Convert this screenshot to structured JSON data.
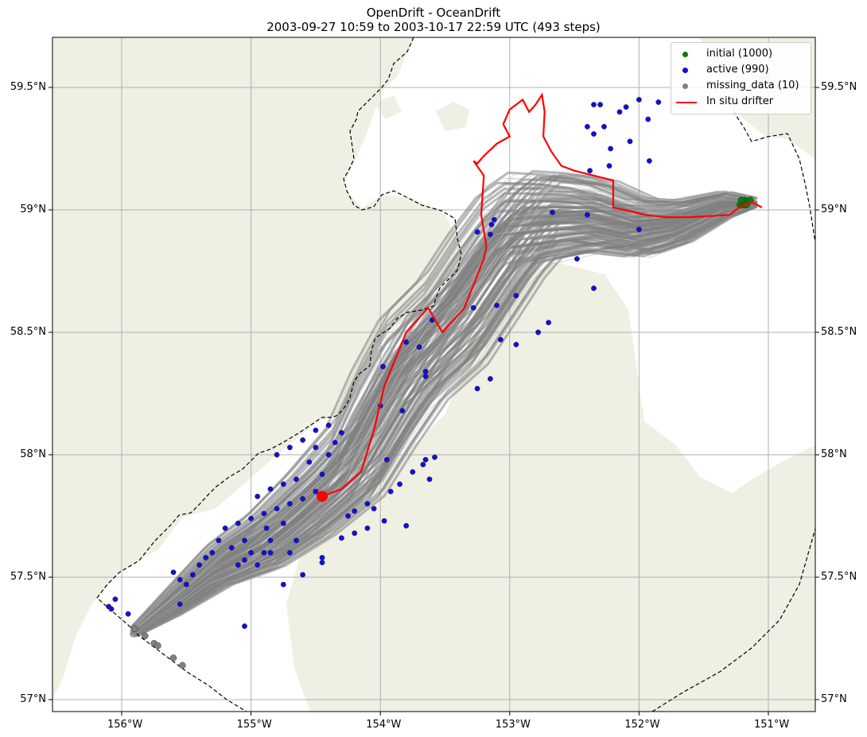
{
  "figure": {
    "title_line1": "OpenDrift - OceanDrift",
    "title_line2": "2003-09-27 10:59 to 2003-10-17 22:59 UTC (493 steps)"
  },
  "legend": {
    "items": [
      {
        "label": "initial (1000)",
        "color": "#0a7a0a",
        "kind": "marker"
      },
      {
        "label": "active (990)",
        "color": "#1010d8",
        "kind": "marker"
      },
      {
        "label": "missing_data (10)",
        "color": "#808080",
        "kind": "marker"
      },
      {
        "label": "In situ drifter",
        "color": "#ff0000",
        "kind": "line"
      }
    ]
  },
  "axes": {
    "lat_labels": [
      "59.5°N",
      "59°N",
      "58.5°N",
      "58°N",
      "57.5°N",
      "57°N"
    ],
    "lon_labels": [
      "156°W",
      "155°W",
      "154°W",
      "153°W",
      "152°W",
      "151°W"
    ]
  },
  "colors": {
    "land": "#efefe3",
    "trajectories": "#808080",
    "drifter": "#ff0000",
    "active": "#1010d8",
    "initial": "#0a7a0a",
    "missing": "#808080",
    "grid": "#b0b0b0"
  },
  "chart_data": {
    "type": "scatter",
    "projection": "map",
    "lon_range": [
      -156.55,
      -150.6
    ],
    "lat_range": [
      56.95,
      59.7
    ],
    "lon_ticks": [
      -156,
      -155,
      -154,
      -153,
      -152,
      -151
    ],
    "lat_ticks": [
      59.5,
      59.0,
      58.5,
      58.0,
      57.5,
      57.0
    ],
    "grid": true,
    "legend_position": "top-right",
    "drifter_track": [
      [
        -151.05,
        59.01
      ],
      [
        -151.12,
        59.03
      ],
      [
        -151.2,
        59.02
      ],
      [
        -151.3,
        58.98
      ],
      [
        -151.6,
        58.97
      ],
      [
        -151.8,
        58.97
      ],
      [
        -151.95,
        58.98
      ],
      [
        -152.2,
        59.01
      ],
      [
        -152.2,
        59.12
      ],
      [
        -152.5,
        59.16
      ],
      [
        -152.6,
        59.18
      ],
      [
        -152.68,
        59.24
      ],
      [
        -152.74,
        59.3
      ],
      [
        -152.73,
        59.4
      ],
      [
        -152.75,
        59.47
      ],
      [
        -152.8,
        59.43
      ],
      [
        -152.85,
        59.4
      ],
      [
        -152.9,
        59.45
      ],
      [
        -153.0,
        59.41
      ],
      [
        -153.05,
        59.35
      ],
      [
        -153.0,
        59.3
      ],
      [
        -153.1,
        59.27
      ],
      [
        -153.2,
        59.22
      ],
      [
        -153.25,
        59.19
      ],
      [
        -153.28,
        59.2
      ],
      [
        -153.2,
        59.14
      ],
      [
        -153.22,
        58.98
      ],
      [
        -153.18,
        58.85
      ],
      [
        -153.2,
        58.8
      ],
      [
        -153.35,
        58.6
      ],
      [
        -153.52,
        58.5
      ],
      [
        -153.63,
        58.6
      ],
      [
        -153.8,
        58.5
      ],
      [
        -153.97,
        58.28
      ],
      [
        -154.05,
        58.1
      ],
      [
        -154.15,
        57.93
      ],
      [
        -154.3,
        57.86
      ],
      [
        -154.45,
        57.83
      ]
    ],
    "drifter_end": [
      -154.45,
      57.83
    ],
    "drifter_start": [
      -151.05,
      59.01
    ],
    "initial_points": [
      [
        -151.2,
        59.03
      ],
      [
        -151.18,
        59.04
      ],
      [
        -151.16,
        59.03
      ],
      [
        -151.22,
        59.02
      ],
      [
        -151.19,
        59.02
      ],
      [
        -151.14,
        59.04
      ],
      [
        -151.21,
        59.04
      ],
      [
        -151.17,
        59.02
      ]
    ],
    "active_points": [
      [
        -152.35,
        59.43
      ],
      [
        -152.3,
        59.43
      ],
      [
        -152.15,
        59.4
      ],
      [
        -152.1,
        59.42
      ],
      [
        -152.0,
        59.45
      ],
      [
        -151.93,
        59.37
      ],
      [
        -151.85,
        59.44
      ],
      [
        -152.4,
        59.34
      ],
      [
        -152.35,
        59.31
      ],
      [
        -152.27,
        59.34
      ],
      [
        -152.22,
        59.25
      ],
      [
        -152.23,
        59.18
      ],
      [
        -152.07,
        59.28
      ],
      [
        -151.92,
        59.2
      ],
      [
        -152.38,
        59.16
      ],
      [
        -152.4,
        58.98
      ],
      [
        -152.0,
        58.92
      ],
      [
        -152.67,
        58.99
      ],
      [
        -153.12,
        58.96
      ],
      [
        -153.14,
        58.94
      ],
      [
        -153.15,
        58.9
      ],
      [
        -153.25,
        58.91
      ],
      [
        -152.48,
        58.8
      ],
      [
        -152.35,
        58.68
      ],
      [
        -153.28,
        58.6
      ],
      [
        -153.1,
        58.61
      ],
      [
        -152.95,
        58.65
      ],
      [
        -153.6,
        58.55
      ],
      [
        -152.7,
        58.54
      ],
      [
        -152.78,
        58.5
      ],
      [
        -153.07,
        58.47
      ],
      [
        -152.95,
        58.45
      ],
      [
        -153.8,
        58.46
      ],
      [
        -153.7,
        58.44
      ],
      [
        -153.98,
        58.36
      ],
      [
        -153.65,
        58.34
      ],
      [
        -153.65,
        58.32
      ],
      [
        -153.15,
        58.31
      ],
      [
        -153.25,
        58.27
      ],
      [
        -154.0,
        58.2
      ],
      [
        -153.83,
        58.18
      ],
      [
        -154.3,
        58.09
      ],
      [
        -154.4,
        58.12
      ],
      [
        -154.5,
        58.1
      ],
      [
        -154.6,
        58.06
      ],
      [
        -154.7,
        58.03
      ],
      [
        -154.8,
        58.0
      ],
      [
        -154.55,
        57.97
      ],
      [
        -154.65,
        57.9
      ],
      [
        -154.75,
        57.88
      ],
      [
        -154.85,
        57.86
      ],
      [
        -154.95,
        57.83
      ],
      [
        -154.5,
        57.85
      ],
      [
        -154.6,
        57.82
      ],
      [
        -154.7,
        57.8
      ],
      [
        -154.8,
        57.78
      ],
      [
        -154.9,
        57.76
      ],
      [
        -155.0,
        57.74
      ],
      [
        -155.1,
        57.72
      ],
      [
        -155.2,
        57.7
      ],
      [
        -155.05,
        57.65
      ],
      [
        -155.0,
        57.6
      ],
      [
        -155.05,
        57.57
      ],
      [
        -155.1,
        57.55
      ],
      [
        -154.95,
        57.55
      ],
      [
        -154.9,
        57.6
      ],
      [
        -154.85,
        57.65
      ],
      [
        -154.88,
        57.7
      ],
      [
        -154.75,
        57.72
      ],
      [
        -154.65,
        57.65
      ],
      [
        -154.7,
        57.6
      ],
      [
        -155.15,
        57.62
      ],
      [
        -155.25,
        57.65
      ],
      [
        -155.3,
        57.6
      ],
      [
        -155.35,
        57.58
      ],
      [
        -154.45,
        57.92
      ],
      [
        -154.4,
        58.0
      ],
      [
        -154.35,
        58.05
      ],
      [
        -154.5,
        58.03
      ],
      [
        -153.95,
        57.98
      ],
      [
        -153.65,
        57.98
      ],
      [
        -153.58,
        57.99
      ],
      [
        -153.75,
        57.93
      ],
      [
        -153.67,
        57.96
      ],
      [
        -153.85,
        57.88
      ],
      [
        -153.62,
        57.9
      ],
      [
        -153.92,
        57.85
      ],
      [
        -154.1,
        57.8
      ],
      [
        -154.2,
        57.77
      ],
      [
        -154.25,
        57.75
      ],
      [
        -154.05,
        57.78
      ],
      [
        -153.97,
        57.73
      ],
      [
        -154.1,
        57.7
      ],
      [
        -154.2,
        57.68
      ],
      [
        -153.8,
        57.71
      ],
      [
        -154.3,
        57.66
      ],
      [
        -154.45,
        57.58
      ],
      [
        -154.45,
        57.56
      ],
      [
        -154.6,
        57.51
      ],
      [
        -154.75,
        57.47
      ],
      [
        -154.85,
        57.6
      ],
      [
        -155.6,
        57.52
      ],
      [
        -155.55,
        57.49
      ],
      [
        -155.45,
        57.51
      ],
      [
        -155.5,
        57.47
      ],
      [
        -155.4,
        57.55
      ],
      [
        -155.55,
        57.39
      ],
      [
        -155.95,
        57.35
      ],
      [
        -156.05,
        57.41
      ],
      [
        -156.1,
        57.38
      ],
      [
        -156.08,
        57.37
      ],
      [
        -155.05,
        57.3
      ]
    ],
    "missing_points": [
      [
        -155.9,
        57.29
      ],
      [
        -155.82,
        57.26
      ],
      [
        -155.75,
        57.23
      ],
      [
        -155.72,
        57.22
      ],
      [
        -155.6,
        57.17
      ],
      [
        -155.53,
        57.14
      ]
    ],
    "trajectory_centerline": [
      [
        -151.12,
        59.03
      ],
      [
        -151.35,
        59.02
      ],
      [
        -151.7,
        58.95
      ],
      [
        -152.0,
        58.93
      ],
      [
        -152.35,
        58.98
      ],
      [
        -152.6,
        58.98
      ],
      [
        -152.85,
        58.97
      ],
      [
        -153.0,
        58.9
      ],
      [
        -153.2,
        58.75
      ],
      [
        -153.45,
        58.55
      ],
      [
        -153.75,
        58.4
      ],
      [
        -153.98,
        58.2
      ],
      [
        -154.2,
        57.98
      ],
      [
        -154.55,
        57.8
      ],
      [
        -154.9,
        57.65
      ],
      [
        -155.25,
        57.55
      ],
      [
        -155.6,
        57.4
      ],
      [
        -155.9,
        57.28
      ]
    ]
  }
}
